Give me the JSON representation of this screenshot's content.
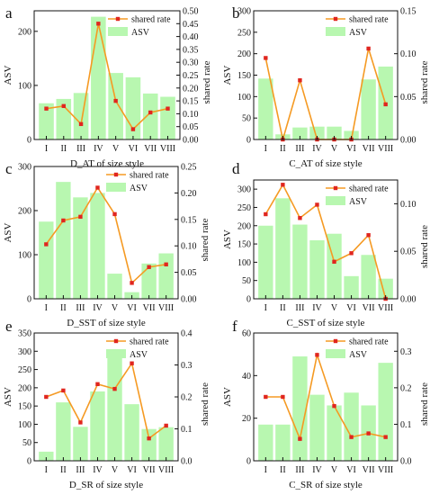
{
  "style": {
    "bar_color": "#b8f7b0",
    "line_color": "#f59a23",
    "marker_color": "#e0261f",
    "axis_color": "#111111"
  },
  "legend": {
    "line_label": "shared rate",
    "bar_label": "ASV"
  },
  "chart_data": [
    {
      "panel": "a",
      "type": "bar",
      "categories": [
        "I",
        "II",
        "III",
        "IV",
        "V",
        "VI",
        "VII",
        "VIII"
      ],
      "series": [
        {
          "name": "ASV",
          "type": "bar",
          "axis": "left",
          "values": [
            67,
            75,
            86,
            227,
            123,
            115,
            85,
            79
          ]
        },
        {
          "name": "shared rate",
          "type": "line",
          "axis": "right",
          "values": [
            0.12,
            0.13,
            0.06,
            0.45,
            0.15,
            0.04,
            0.105,
            0.12
          ]
        }
      ],
      "xlabel": "D_AT of size style",
      "ylabel": "ASV",
      "y2label": "shared rate",
      "ylim": [
        0,
        238
      ],
      "yticks": [
        0,
        100,
        200
      ],
      "y2lim": [
        0,
        0.5
      ],
      "y2ticks": [
        "0.00",
        "0.05",
        "0.10",
        "0.15",
        "0.20",
        "0.25",
        "0.30",
        "0.35",
        "0.40",
        "0.45",
        "0.50"
      ]
    },
    {
      "panel": "b",
      "type": "bar",
      "categories": [
        "I",
        "II",
        "III",
        "IV",
        "V",
        "VI",
        "VII",
        "VIII"
      ],
      "series": [
        {
          "name": "ASV",
          "type": "bar",
          "axis": "left",
          "values": [
            142,
            12,
            28,
            30,
            30,
            20,
            140,
            170
          ]
        },
        {
          "name": "shared rate",
          "type": "line",
          "axis": "right",
          "values": [
            0.095,
            0.0,
            0.069,
            0.0,
            0.0,
            0.0,
            0.106,
            0.041
          ]
        }
      ],
      "xlabel": "C_AT of size style",
      "ylabel": "ASV",
      "y2label": "shared rate",
      "ylim": [
        0,
        300
      ],
      "yticks": [
        0,
        50,
        100,
        150,
        200,
        250,
        300
      ],
      "y2lim": [
        0,
        0.15
      ],
      "y2ticks": [
        "0.00",
        "0.05",
        "0.10",
        "0.15"
      ]
    },
    {
      "panel": "c",
      "type": "bar",
      "categories": [
        "I",
        "II",
        "III",
        "IV",
        "V",
        "VI",
        "VII",
        "VIII"
      ],
      "series": [
        {
          "name": "ASV",
          "type": "bar",
          "axis": "left",
          "values": [
            175,
            265,
            230,
            240,
            57,
            15,
            80,
            103
          ]
        },
        {
          "name": "shared rate",
          "type": "line",
          "axis": "right",
          "values": [
            0.103,
            0.148,
            0.155,
            0.21,
            0.16,
            0.03,
            0.06,
            0.065
          ]
        }
      ],
      "xlabel": "D_SST of size style",
      "ylabel": "ASV",
      "y2label": "shared rate",
      "ylim": [
        0,
        300
      ],
      "yticks": [
        0,
        100,
        200,
        300
      ],
      "y2lim": [
        0,
        0.25
      ],
      "y2ticks": [
        "0.00",
        "0.05",
        "0.10",
        "0.15",
        "0.20",
        "0.25"
      ]
    },
    {
      "panel": "d",
      "type": "bar",
      "categories": [
        "I",
        "II",
        "III",
        "IV",
        "V",
        "VI",
        "VII",
        "VIII"
      ],
      "series": [
        {
          "name": "ASV",
          "type": "bar",
          "axis": "left",
          "values": [
            200,
            275,
            203,
            160,
            178,
            62,
            120,
            55
          ]
        },
        {
          "name": "shared rate",
          "type": "line",
          "axis": "right",
          "values": [
            0.089,
            0.12,
            0.085,
            0.099,
            0.039,
            0.048,
            0.067,
            0.0
          ]
        }
      ],
      "xlabel": "C_SST of size style",
      "ylabel": "ASV",
      "y2label": "shared rate",
      "ylim": [
        0,
        325
      ],
      "yticks": [
        0,
        50,
        100,
        150,
        200,
        250,
        300
      ],
      "y2lim": [
        0,
        0.125
      ],
      "y2ticks": [
        "0.00",
        "0.05",
        "0.10"
      ]
    },
    {
      "panel": "e",
      "type": "bar",
      "categories": [
        "I",
        "II",
        "III",
        "IV",
        "V",
        "VI",
        "VII",
        "VIII"
      ],
      "series": [
        {
          "name": "ASV",
          "type": "bar",
          "axis": "left",
          "values": [
            25,
            160,
            93,
            190,
            298,
            155,
            87,
            92
          ]
        },
        {
          "name": "shared rate",
          "type": "line",
          "axis": "right",
          "values": [
            0.2,
            0.22,
            0.12,
            0.24,
            0.225,
            0.305,
            0.07,
            0.11
          ]
        }
      ],
      "xlabel": "D_SR of size style",
      "ylabel": "ASV",
      "y2label": "shared rate",
      "ylim": [
        0,
        350
      ],
      "yticks": [
        0,
        50,
        100,
        150,
        200,
        250,
        300,
        350
      ],
      "y2lim": [
        0,
        0.4
      ],
      "y2ticks": [
        "0.0",
        "0.1",
        "0.2",
        "0.3",
        "0.4"
      ]
    },
    {
      "panel": "f",
      "type": "bar",
      "categories": [
        "I",
        "II",
        "III",
        "IV",
        "V",
        "VI",
        "VII",
        "VIII"
      ],
      "series": [
        {
          "name": "ASV",
          "type": "bar",
          "axis": "left",
          "values": [
            17,
            17,
            49,
            31,
            26,
            32,
            26,
            46
          ]
        },
        {
          "name": "shared rate",
          "type": "line",
          "axis": "right",
          "values": [
            0.175,
            0.175,
            0.06,
            0.29,
            0.15,
            0.065,
            0.075,
            0.065
          ]
        }
      ],
      "xlabel": "C_SR of size style",
      "ylabel": "ASV",
      "y2label": "shared rate",
      "ylim": [
        0,
        60
      ],
      "yticks": [
        0,
        20,
        40,
        60
      ],
      "y2lim": [
        0,
        0.35
      ],
      "y2ticks": [
        "0.0",
        "0.1",
        "0.2",
        "0.3"
      ]
    }
  ]
}
